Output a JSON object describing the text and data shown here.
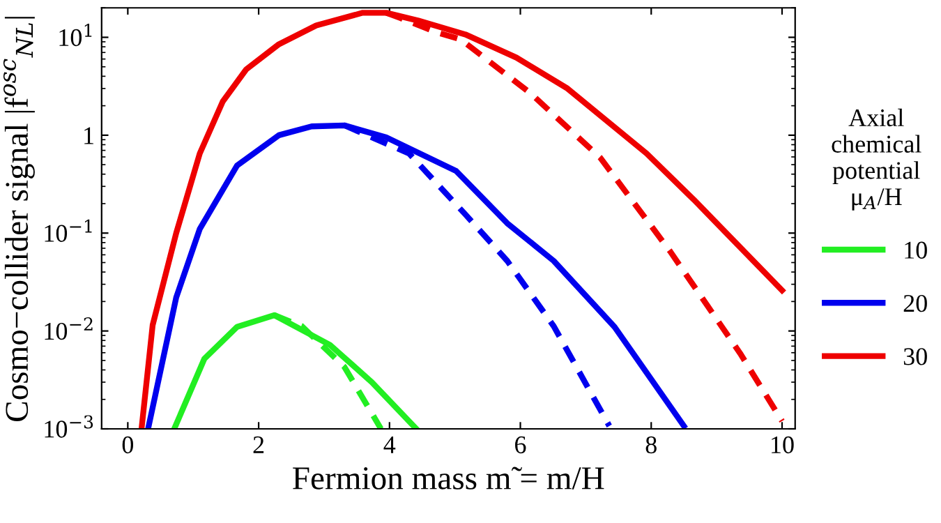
{
  "chart_data": {
    "type": "line",
    "xlabel": "Fermion mass m̃ = m/H",
    "ylabel": "Cosmo−collider signal |f$^{osc}$$_{NL}$|",
    "legend_title": "Axial\nchemical\npotential\nμ$_{A}$/H",
    "log": "y",
    "legend": "right",
    "grid": false,
    "xlim": [
      -0.4,
      10.2
    ],
    "xticks": [
      0,
      2,
      4,
      6,
      8,
      10
    ],
    "ylim": [
      0.001,
      20
    ],
    "yticks": [
      {
        "value": 0.001,
        "label": "10$^{−3}$"
      },
      {
        "value": 0.01,
        "label": "10$^{−2}$"
      },
      {
        "value": 0.1,
        "label": "10$^{−1}$"
      },
      1,
      {
        "value": 10,
        "label": "10$^{1}$"
      }
    ],
    "series": [
      {
        "name": "10",
        "color": "#22ee22",
        "line_style": "solid",
        "x": [
          0.71,
          1.17,
          1.67,
          2.24,
          3.09,
          3.73,
          4.41
        ],
        "values": [
          0.001,
          0.0052,
          0.011,
          0.0145,
          0.0072,
          0.003,
          0.001
        ]
      },
      {
        "name": "20",
        "color": "#0000ee",
        "line_style": "solid",
        "x": [
          0.31,
          0.74,
          1.1,
          1.67,
          2.31,
          2.81,
          3.31,
          3.95,
          5.02,
          5.8,
          6.51,
          7.44,
          8.5
        ],
        "values": [
          0.001,
          0.022,
          0.11,
          0.49,
          1.0,
          1.23,
          1.26,
          0.95,
          0.43,
          0.126,
          0.052,
          0.011,
          0.00107
        ]
      },
      {
        "name": "30",
        "color": "#ee0000",
        "line_style": "solid",
        "x": [
          0.21,
          0.38,
          0.74,
          1.1,
          1.45,
          1.81,
          2.31,
          2.88,
          3.59,
          3.95,
          4.44,
          5.16,
          5.94,
          6.72,
          7.93,
          8.65,
          10
        ],
        "values": [
          0.001,
          0.0115,
          0.1,
          0.65,
          2.2,
          4.7,
          8.5,
          13.2,
          17.8,
          17.8,
          14.8,
          10.7,
          6.2,
          3.0,
          0.65,
          0.22,
          0.026
        ]
      },
      {
        "color": "#22ee22",
        "line_style": "dashed",
        "x": [
          2.24,
          2.66,
          3.31,
          3.87
        ],
        "values": [
          0.0145,
          0.0112,
          0.0043,
          0.001
        ]
      },
      {
        "color": "#0000ee",
        "line_style": "dashed",
        "x": [
          3.31,
          4.3,
          5.16,
          5.8,
          6.51,
          7.36
        ],
        "values": [
          1.26,
          0.65,
          0.155,
          0.052,
          0.0112,
          0.00107
        ]
      },
      {
        "color": "#ee0000",
        "line_style": "dashed",
        "x": [
          3.95,
          4.16,
          4.73,
          5.09,
          6.15,
          7.22,
          8.29,
          9.36,
          10
        ],
        "values": [
          17.8,
          15.8,
          11.2,
          9.5,
          2.7,
          0.59,
          0.065,
          0.0059,
          0.0012
        ]
      }
    ]
  }
}
